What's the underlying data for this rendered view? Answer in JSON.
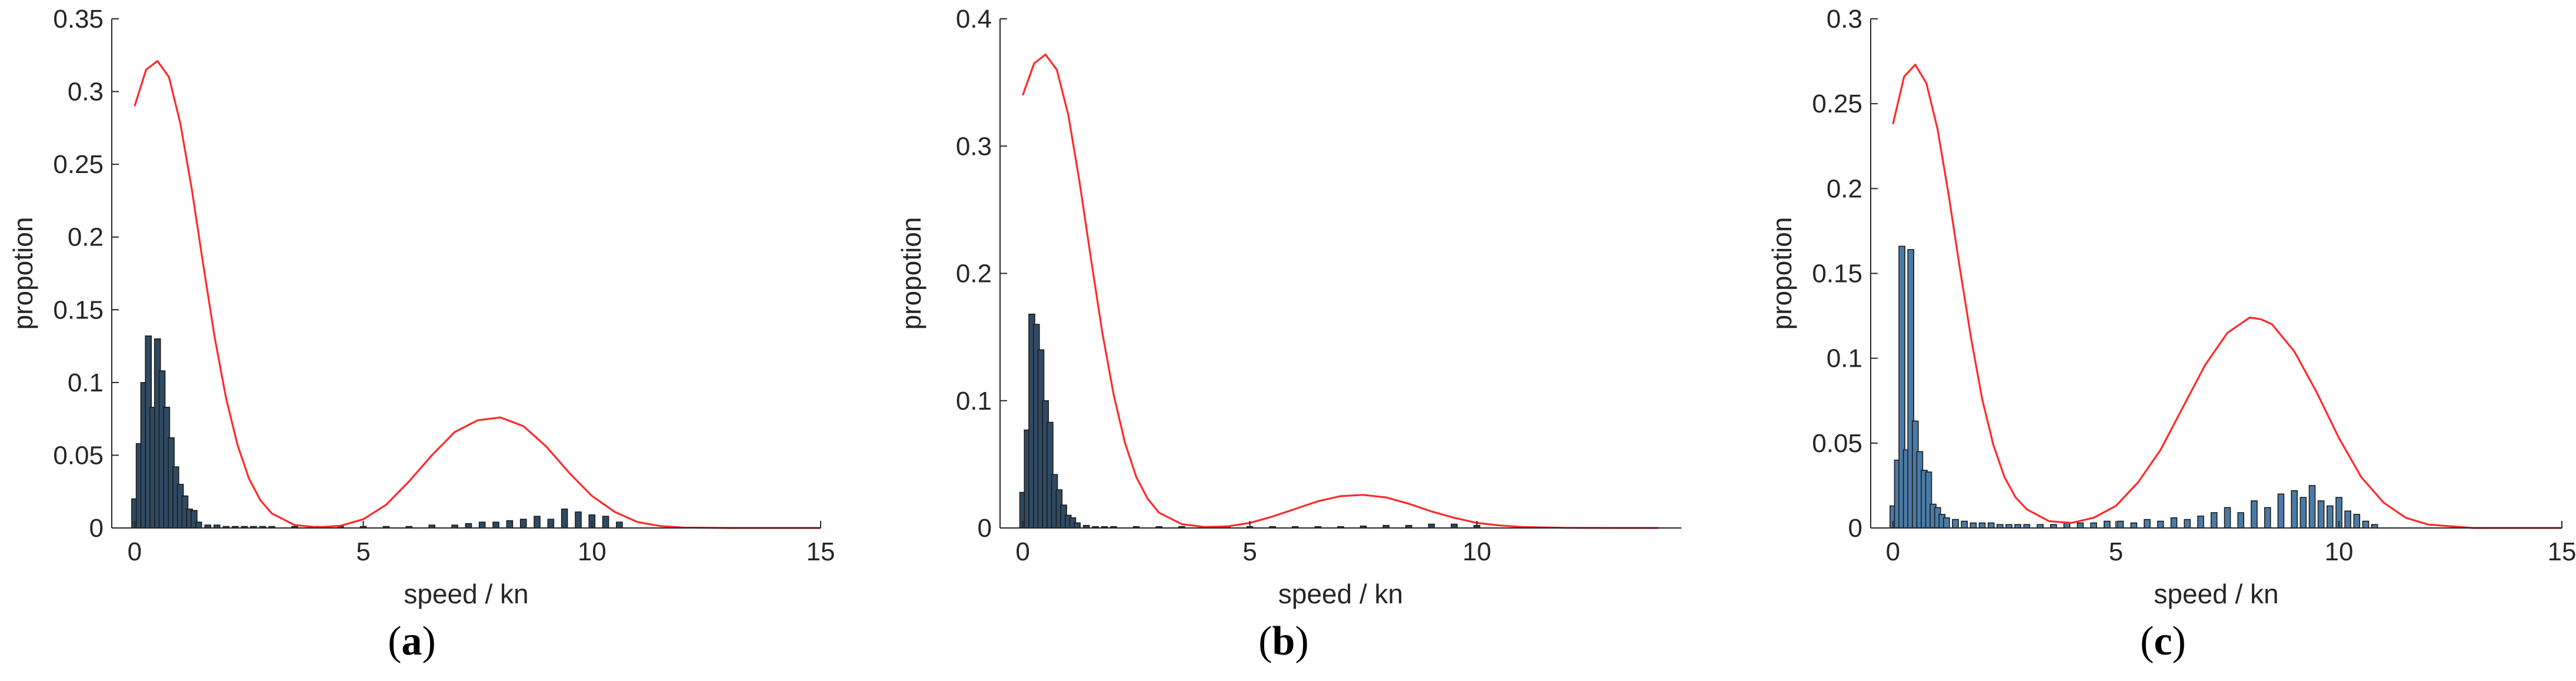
{
  "colors": {
    "bar_fill": "#4a7ba7",
    "bar_fill_dark": "#2f4a63",
    "bar_edge": "#1b1b1b",
    "curve": "#ff2a2a",
    "axis": "#262626"
  },
  "chart_data": [
    {
      "type": "bar",
      "caption": "(a)",
      "caption_letter": "a",
      "xlabel": "speed / kn",
      "ylabel": "propotion",
      "xlim": [
        -0.5,
        15
      ],
      "ylim": [
        0,
        0.35
      ],
      "xticks": [
        0,
        5,
        10,
        15
      ],
      "yticks": [
        0,
        0.05,
        0.1,
        0.15,
        0.2,
        0.25,
        0.3,
        0.35
      ],
      "ytick_labels": [
        "0",
        "0.05",
        "0.1",
        "0.15",
        "0.2",
        "0.25",
        "0.3",
        "0.35"
      ],
      "bar_style": "dark",
      "bars": {
        "x": [
          0.0,
          0.1,
          0.2,
          0.3,
          0.4,
          0.5,
          0.6,
          0.7,
          0.8,
          0.9,
          1.0,
          1.1,
          1.2,
          1.3,
          1.4,
          1.6,
          1.8,
          2.0,
          2.2,
          2.4,
          2.6,
          2.8,
          3.0,
          3.5,
          4.0,
          4.5,
          5.0,
          5.5,
          6.0,
          6.5,
          7.0,
          7.3,
          7.6,
          7.9,
          8.2,
          8.5,
          8.8,
          9.1,
          9.4,
          9.7,
          10.0,
          10.3,
          10.6
        ],
        "values": [
          0.02,
          0.058,
          0.1,
          0.132,
          0.083,
          0.13,
          0.108,
          0.083,
          0.062,
          0.042,
          0.03,
          0.022,
          0.013,
          0.012,
          0.004,
          0.002,
          0.002,
          0.001,
          0.001,
          0.001,
          0.001,
          0.001,
          0.001,
          0.001,
          0.001,
          0.001,
          0.001,
          0.001,
          0.001,
          0.002,
          0.002,
          0.003,
          0.004,
          0.004,
          0.005,
          0.006,
          0.008,
          0.006,
          0.013,
          0.011,
          0.009,
          0.008,
          0.004
        ]
      },
      "curve": {
        "x": [
          0,
          0.25,
          0.5,
          0.75,
          1,
          1.25,
          1.5,
          1.75,
          2,
          2.25,
          2.5,
          2.75,
          3,
          3.5,
          4,
          4.5,
          5,
          5.5,
          6,
          6.5,
          7,
          7.5,
          8,
          8.5,
          9,
          9.5,
          10,
          10.5,
          11,
          11.5,
          12,
          13,
          14,
          15
        ],
        "values": [
          0.29,
          0.315,
          0.321,
          0.31,
          0.278,
          0.233,
          0.181,
          0.131,
          0.089,
          0.057,
          0.034,
          0.019,
          0.01,
          0.002,
          0.0005,
          0.0015,
          0.006,
          0.016,
          0.032,
          0.05,
          0.066,
          0.074,
          0.076,
          0.07,
          0.056,
          0.038,
          0.022,
          0.011,
          0.004,
          0.0013,
          0.0003,
          0.0,
          0.0,
          0.0
        ]
      }
    },
    {
      "type": "bar",
      "caption": "(b)",
      "caption_letter": "b",
      "xlabel": "speed / kn",
      "ylabel": "propotion",
      "xlim": [
        -0.5,
        14.5
      ],
      "ylim": [
        0,
        0.4
      ],
      "xticks": [
        0,
        5,
        10
      ],
      "yticks": [
        0,
        0.1,
        0.2,
        0.3,
        0.4
      ],
      "ytick_labels": [
        "0",
        "0.1",
        "0.2",
        "0.3",
        "0.4"
      ],
      "bar_style": "dark",
      "bars": {
        "x": [
          0.0,
          0.1,
          0.2,
          0.3,
          0.4,
          0.5,
          0.6,
          0.7,
          0.8,
          0.9,
          1.0,
          1.1,
          1.2,
          1.4,
          1.6,
          1.8,
          2.0,
          2.5,
          3.0,
          3.5,
          4.0,
          4.5,
          5.0,
          5.5,
          6.0,
          6.5,
          7.0,
          7.5,
          8.0,
          8.5,
          9.0,
          9.5,
          10.0
        ],
        "values": [
          0.028,
          0.077,
          0.168,
          0.16,
          0.14,
          0.1,
          0.083,
          0.042,
          0.03,
          0.018,
          0.01,
          0.008,
          0.004,
          0.002,
          0.001,
          0.001,
          0.001,
          0.001,
          0.001,
          0.001,
          0.001,
          0.001,
          0.001,
          0.001,
          0.001,
          0.001,
          0.001,
          0.0015,
          0.002,
          0.002,
          0.003,
          0.003,
          0.002
        ]
      },
      "curve": {
        "x": [
          0,
          0.25,
          0.5,
          0.75,
          1,
          1.25,
          1.5,
          1.75,
          2,
          2.25,
          2.5,
          2.75,
          3,
          3.5,
          4,
          4.5,
          5,
          5.5,
          6,
          6.5,
          7,
          7.5,
          8,
          8.5,
          9,
          9.5,
          10,
          10.5,
          11,
          12,
          13,
          14
        ],
        "values": [
          0.34,
          0.365,
          0.372,
          0.36,
          0.325,
          0.272,
          0.212,
          0.154,
          0.105,
          0.067,
          0.04,
          0.023,
          0.012,
          0.003,
          0.0008,
          0.0012,
          0.004,
          0.009,
          0.015,
          0.021,
          0.025,
          0.026,
          0.024,
          0.019,
          0.013,
          0.008,
          0.004,
          0.002,
          0.0008,
          0.0001,
          0.0,
          0.0
        ]
      }
    },
    {
      "type": "bar",
      "caption": "(c)",
      "caption_letter": "c",
      "xlabel": "speed / kn",
      "ylabel": "propotion",
      "xlim": [
        -0.5,
        15
      ],
      "ylim": [
        0,
        0.3
      ],
      "xticks": [
        0,
        5,
        10,
        15
      ],
      "yticks": [
        0,
        0.05,
        0.1,
        0.15,
        0.2,
        0.25,
        0.3
      ],
      "ytick_labels": [
        "0",
        "0.05",
        "0.1",
        "0.15",
        "0.2",
        "0.25",
        "0.3"
      ],
      "bar_style": "light",
      "bars": {
        "x": [
          0.0,
          0.1,
          0.2,
          0.3,
          0.4,
          0.5,
          0.6,
          0.7,
          0.8,
          0.9,
          1.0,
          1.1,
          1.2,
          1.4,
          1.6,
          1.8,
          2.0,
          2.2,
          2.4,
          2.6,
          2.8,
          3.0,
          3.3,
          3.6,
          3.9,
          4.2,
          4.5,
          4.8,
          5.1,
          5.4,
          5.7,
          6.0,
          6.3,
          6.6,
          6.9,
          7.2,
          7.5,
          7.8,
          8.1,
          8.4,
          8.7,
          9.0,
          9.2,
          9.4,
          9.6,
          9.8,
          10.0,
          10.2,
          10.4,
          10.6,
          10.8
        ],
        "values": [
          0.013,
          0.04,
          0.166,
          0.046,
          0.164,
          0.063,
          0.045,
          0.034,
          0.033,
          0.014,
          0.012,
          0.008,
          0.006,
          0.005,
          0.004,
          0.003,
          0.003,
          0.003,
          0.002,
          0.002,
          0.002,
          0.002,
          0.002,
          0.002,
          0.003,
          0.003,
          0.003,
          0.004,
          0.004,
          0.003,
          0.005,
          0.004,
          0.006,
          0.005,
          0.007,
          0.009,
          0.012,
          0.009,
          0.016,
          0.012,
          0.02,
          0.022,
          0.018,
          0.025,
          0.016,
          0.013,
          0.018,
          0.01,
          0.008,
          0.004,
          0.002
        ]
      },
      "curve": {
        "x": [
          0,
          0.25,
          0.5,
          0.75,
          1,
          1.25,
          1.5,
          1.75,
          2,
          2.25,
          2.5,
          2.75,
          3,
          3.5,
          4,
          4.5,
          5,
          5.5,
          6,
          6.5,
          7,
          7.5,
          8,
          8.25,
          8.5,
          9,
          9.5,
          10,
          10.5,
          11,
          11.5,
          12,
          13,
          14,
          15
        ],
        "values": [
          0.238,
          0.266,
          0.273,
          0.262,
          0.235,
          0.196,
          0.153,
          0.112,
          0.076,
          0.049,
          0.03,
          0.018,
          0.011,
          0.004,
          0.003,
          0.006,
          0.013,
          0.027,
          0.046,
          0.071,
          0.096,
          0.115,
          0.124,
          0.123,
          0.12,
          0.104,
          0.08,
          0.053,
          0.03,
          0.015,
          0.006,
          0.002,
          0.0,
          0.0,
          0.0
        ]
      }
    }
  ]
}
